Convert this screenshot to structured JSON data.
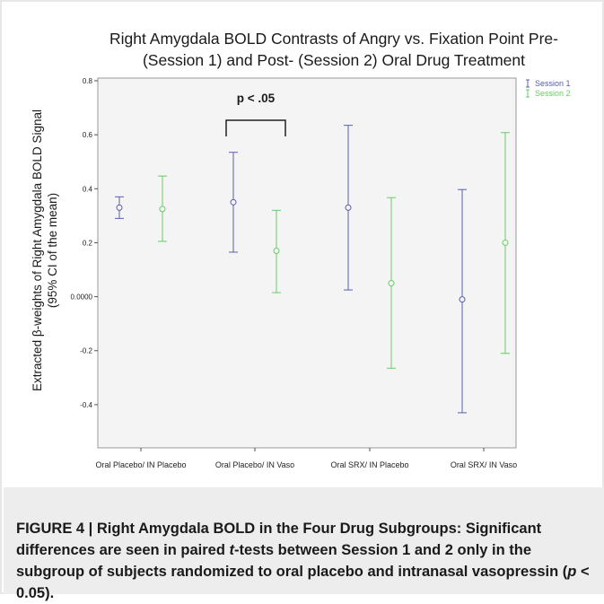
{
  "chart_data": {
    "type": "errorbar",
    "title_line1": "Right Amygdala BOLD Contrasts of Angry vs. Fixation Point Pre-",
    "title_line2": "(Session 1) and Post- (Session 2) Oral Drug Treatment",
    "ylabel_line1": "Extracted β-weights of Right Amygdala BOLD Signal",
    "ylabel_line2": "(95% CI of the mean)",
    "xlabel": "",
    "ylim": [
      -0.56,
      0.81
    ],
    "yticks": [
      {
        "value": 0.8,
        "label": "0.8"
      },
      {
        "value": 0.6,
        "label": "0.6"
      },
      {
        "value": 0.4,
        "label": "0.4"
      },
      {
        "value": 0.2,
        "label": "0.2"
      },
      {
        "value": 0.0,
        "label": "0.0000"
      },
      {
        "value": -0.2,
        "label": "-0.2"
      },
      {
        "value": -0.4,
        "label": "-0.4"
      }
    ],
    "categories": [
      "Oral Placebo/ IN Placebo",
      "Oral Placebo/ IN Vaso",
      "Oral SRX/ IN Placebo",
      "Oral SRX/ IN Vaso"
    ],
    "legend_position": "top-right",
    "series": [
      {
        "name": "Session 1",
        "color": "#5660ad",
        "mean": [
          0.33,
          0.35,
          0.33,
          -0.01
        ],
        "lower": [
          0.29,
          0.165,
          0.025,
          -0.43
        ],
        "upper": [
          0.37,
          0.535,
          0.635,
          0.397
        ]
      },
      {
        "name": "Session 2",
        "color": "#66cc66",
        "mean": [
          0.325,
          0.17,
          0.05,
          0.2
        ],
        "lower": [
          0.205,
          0.015,
          -0.265,
          -0.21
        ],
        "upper": [
          0.447,
          0.32,
          0.367,
          0.608
        ]
      }
    ],
    "annotation": {
      "text": "p < .05",
      "category_index": 1
    }
  },
  "caption": {
    "label": "FIGURE 4 |",
    "text_before_t": " Right Amygdala BOLD in the Four Drug Subgroups: Significant differences are seen in paired ",
    "t_letter": "t",
    "text_after_t": "-tests between Session 1 and 2 only in the subgroup of subjects randomized to oral placebo and intranasal vasopressin (",
    "p_letter": "p",
    "text_end": " < 0.05)."
  }
}
